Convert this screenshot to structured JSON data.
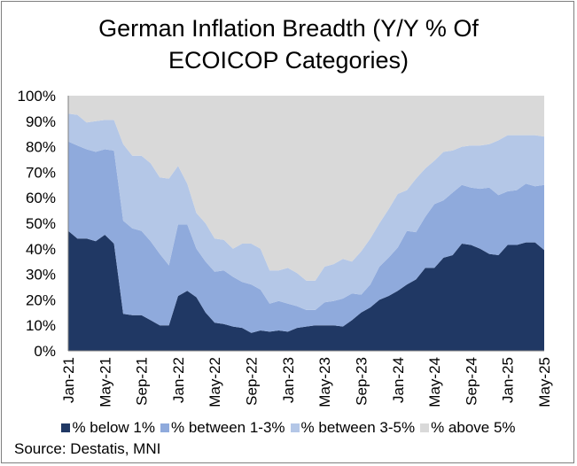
{
  "title_line1": "German Inflation Breadth (Y/Y % Of",
  "title_line2": "ECOICOP Categories)",
  "source": "Source: Destatis, MNI",
  "chart_data": {
    "type": "area",
    "stacked": true,
    "ylim": [
      0,
      100
    ],
    "yticks": [
      "0%",
      "10%",
      "20%",
      "30%",
      "40%",
      "50%",
      "60%",
      "70%",
      "80%",
      "90%",
      "100%"
    ],
    "xtick_labels": [
      "Jan-21",
      "May-21",
      "Sep-21",
      "Jan-22",
      "May-22",
      "Sep-22",
      "Jan-23",
      "May-23",
      "Sep-23",
      "Jan-24",
      "May-24",
      "Sep-24",
      "Jan-25",
      "May-25"
    ],
    "grid": false,
    "legend_position": "bottom",
    "x": [
      "Jan-21",
      "Feb-21",
      "Mar-21",
      "Apr-21",
      "May-21",
      "Jun-21",
      "Jul-21",
      "Aug-21",
      "Sep-21",
      "Oct-21",
      "Nov-21",
      "Dec-21",
      "Jan-22",
      "Feb-22",
      "Mar-22",
      "Apr-22",
      "May-22",
      "Jun-22",
      "Jul-22",
      "Aug-22",
      "Sep-22",
      "Oct-22",
      "Nov-22",
      "Dec-22",
      "Jan-23",
      "Feb-23",
      "Mar-23",
      "Apr-23",
      "May-23",
      "Jun-23",
      "Jul-23",
      "Aug-23",
      "Sep-23",
      "Oct-23",
      "Nov-23",
      "Dec-23",
      "Jan-24",
      "Feb-24",
      "Mar-24",
      "Apr-24",
      "May-24",
      "Jun-24",
      "Jul-24",
      "Aug-24",
      "Sep-24",
      "Oct-24",
      "Nov-24",
      "Dec-24",
      "Jan-25",
      "Feb-25",
      "Mar-25",
      "Apr-25",
      "May-25"
    ],
    "series": [
      {
        "name": "% below 1%",
        "color": "#203864",
        "values": [
          47,
          44,
          44,
          43,
          45.5,
          42,
          14.5,
          14,
          14,
          12,
          10,
          10,
          21.5,
          23.5,
          21,
          15,
          11,
          10.5,
          9.5,
          9,
          7,
          8,
          7.5,
          8,
          7.5,
          9,
          9.5,
          10,
          10,
          10,
          9.5,
          12,
          15,
          17,
          20,
          21.5,
          23.5,
          26,
          28,
          32.5,
          32.5,
          36.5,
          37.5,
          42,
          41.5,
          40,
          38,
          37.5,
          41.5,
          41.5,
          42.5,
          42.5,
          39.5
        ]
      },
      {
        "name": "% between 1-3%",
        "color": "#8faadc",
        "values": [
          35,
          36.5,
          35,
          35,
          33.5,
          36.5,
          36.5,
          34,
          33,
          31,
          28,
          23.5,
          28,
          26,
          19,
          20,
          20,
          21,
          19.5,
          18,
          19,
          16,
          11,
          11.5,
          11,
          8.5,
          6.5,
          6,
          9,
          9.5,
          11,
          10.5,
          7,
          9,
          13,
          15,
          17,
          21,
          18.5,
          20,
          25,
          22.5,
          24.5,
          23,
          22.5,
          23.5,
          26,
          23.5,
          21,
          21.5,
          23,
          22,
          25.5
        ]
      },
      {
        "name": "% between 3-5%",
        "color": "#b4c7e7",
        "values": [
          11,
          12,
          10.5,
          12,
          11.5,
          12,
          30,
          28.5,
          29.5,
          30.5,
          30,
          34,
          23,
          16,
          14,
          15,
          13,
          12,
          11,
          15,
          16,
          16,
          13,
          12,
          14,
          13,
          11.5,
          11.5,
          14,
          14.5,
          15.5,
          12.5,
          17,
          18,
          17,
          19,
          21,
          16,
          21,
          19,
          17,
          19,
          16.5,
          15,
          16.5,
          17,
          17,
          21.5,
          22,
          21.5,
          19,
          20,
          19
        ]
      },
      {
        "name": "% above 5%",
        "color": "#d9d9d9",
        "values": [
          7,
          7.5,
          10.5,
          10,
          9.5,
          9.5,
          19,
          23.5,
          23.5,
          26.5,
          32,
          32.5,
          28,
          34.5,
          46,
          50,
          56,
          56.5,
          60,
          58,
          58,
          60,
          68.5,
          68.5,
          67.5,
          69.5,
          72.5,
          72.5,
          67,
          66,
          64,
          65,
          61,
          56,
          50,
          44.5,
          38.5,
          37,
          32.5,
          28.5,
          25.5,
          22,
          21.5,
          20,
          19.5,
          19.5,
          19,
          17.5,
          15.5,
          15.5,
          15.5,
          15.5,
          16
        ]
      }
    ]
  }
}
